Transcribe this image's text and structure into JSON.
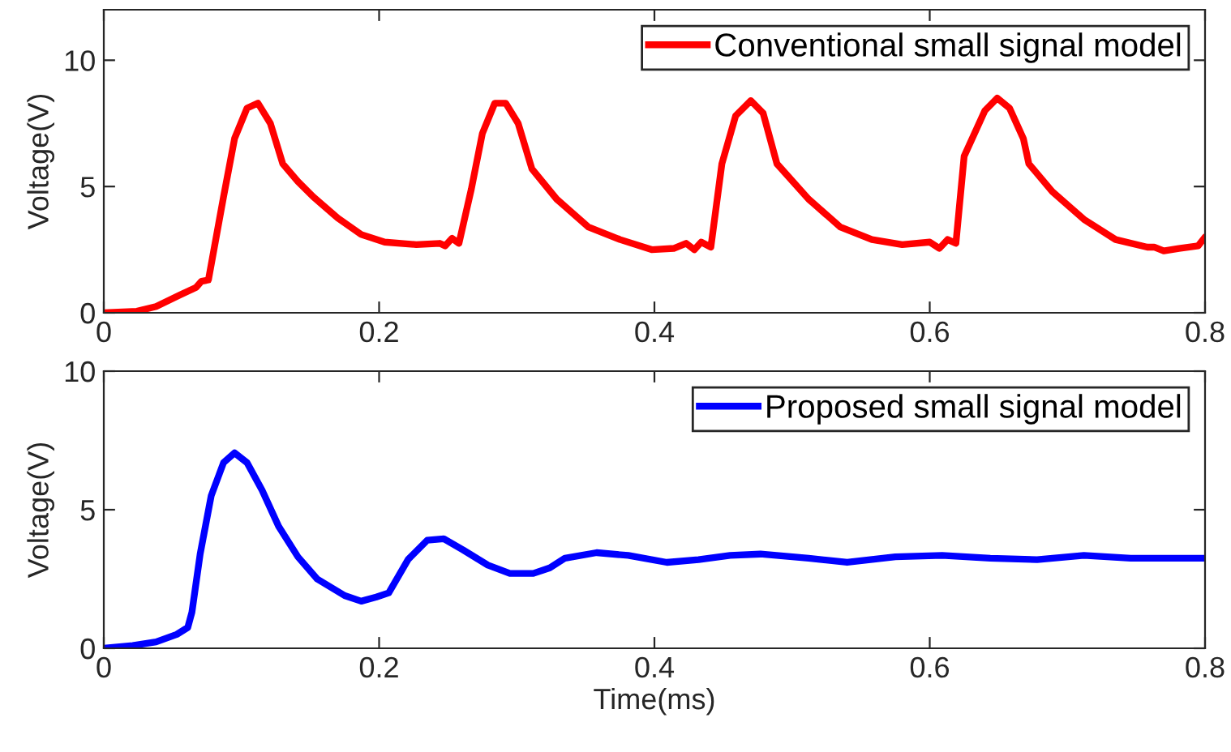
{
  "chart_data": [
    {
      "type": "line",
      "ylabel": "Voltage(V)",
      "xlim": [
        0,
        0.8
      ],
      "xticks": [
        0,
        0.2,
        0.4,
        0.6,
        0.8
      ],
      "ylim": [
        0,
        12
      ],
      "yticks": [
        0,
        5,
        10
      ],
      "legend": "top right",
      "grid": false,
      "series": [
        {
          "name": "Conventional small signal model",
          "color": "#ff0000",
          "x": [
            0,
            0.024,
            0.038,
            0.055,
            0.067,
            0.071,
            0.076,
            0.087,
            0.095,
            0.104,
            0.112,
            0.121,
            0.13,
            0.141,
            0.152,
            0.17,
            0.187,
            0.204,
            0.227,
            0.244,
            0.248,
            0.253,
            0.258,
            0.267,
            0.275,
            0.284,
            0.292,
            0.301,
            0.311,
            0.329,
            0.352,
            0.375,
            0.398,
            0.414,
            0.423,
            0.429,
            0.434,
            0.441,
            0.449,
            0.459,
            0.47,
            0.479,
            0.489,
            0.512,
            0.535,
            0.558,
            0.58,
            0.6,
            0.607,
            0.613,
            0.619,
            0.625,
            0.64,
            0.649,
            0.658,
            0.668,
            0.672,
            0.689,
            0.712,
            0.735,
            0.758,
            0.763,
            0.77,
            0.781,
            0.795,
            0.8
          ],
          "values": [
            0,
            0.06,
            0.25,
            0.7,
            1.0,
            1.25,
            1.3,
            4.6,
            6.9,
            8.1,
            8.3,
            7.5,
            5.9,
            5.2,
            4.6,
            3.75,
            3.1,
            2.8,
            2.7,
            2.75,
            2.65,
            2.95,
            2.75,
            4.9,
            7.1,
            8.3,
            8.3,
            7.5,
            5.7,
            4.5,
            3.4,
            2.9,
            2.5,
            2.55,
            2.75,
            2.5,
            2.8,
            2.6,
            5.9,
            7.8,
            8.4,
            7.9,
            5.9,
            4.5,
            3.4,
            2.9,
            2.7,
            2.8,
            2.55,
            2.9,
            2.75,
            6.2,
            8.0,
            8.5,
            8.1,
            6.9,
            5.9,
            4.8,
            3.7,
            2.9,
            2.6,
            2.6,
            2.45,
            2.55,
            2.65,
            3.0
          ]
        }
      ]
    },
    {
      "type": "line",
      "xlabel": "Time(ms)",
      "ylabel": "Voltage(V)",
      "xlim": [
        0,
        0.8
      ],
      "xticks": [
        0,
        0.2,
        0.4,
        0.6,
        0.8
      ],
      "ylim": [
        0,
        10
      ],
      "yticks": [
        0,
        5,
        10
      ],
      "legend": "top right",
      "grid": false,
      "series": [
        {
          "name": "Proposed small signal model",
          "color": "#0000ff",
          "x": [
            0,
            0.021,
            0.038,
            0.053,
            0.061,
            0.064,
            0.07,
            0.078,
            0.087,
            0.095,
            0.104,
            0.115,
            0.127,
            0.141,
            0.155,
            0.175,
            0.187,
            0.198,
            0.207,
            0.221,
            0.235,
            0.247,
            0.261,
            0.279,
            0.295,
            0.312,
            0.324,
            0.335,
            0.358,
            0.381,
            0.409,
            0.432,
            0.455,
            0.477,
            0.512,
            0.54,
            0.575,
            0.609,
            0.644,
            0.678,
            0.712,
            0.746,
            0.8
          ],
          "values": [
            0,
            0.1,
            0.23,
            0.5,
            0.75,
            1.3,
            3.4,
            5.5,
            6.7,
            7.05,
            6.7,
            5.7,
            4.4,
            3.3,
            2.5,
            1.9,
            1.7,
            1.85,
            2.0,
            3.2,
            3.9,
            3.95,
            3.55,
            3.0,
            2.7,
            2.7,
            2.9,
            3.25,
            3.45,
            3.35,
            3.1,
            3.2,
            3.35,
            3.4,
            3.25,
            3.1,
            3.3,
            3.35,
            3.25,
            3.2,
            3.35,
            3.25,
            3.25
          ]
        }
      ]
    }
  ]
}
